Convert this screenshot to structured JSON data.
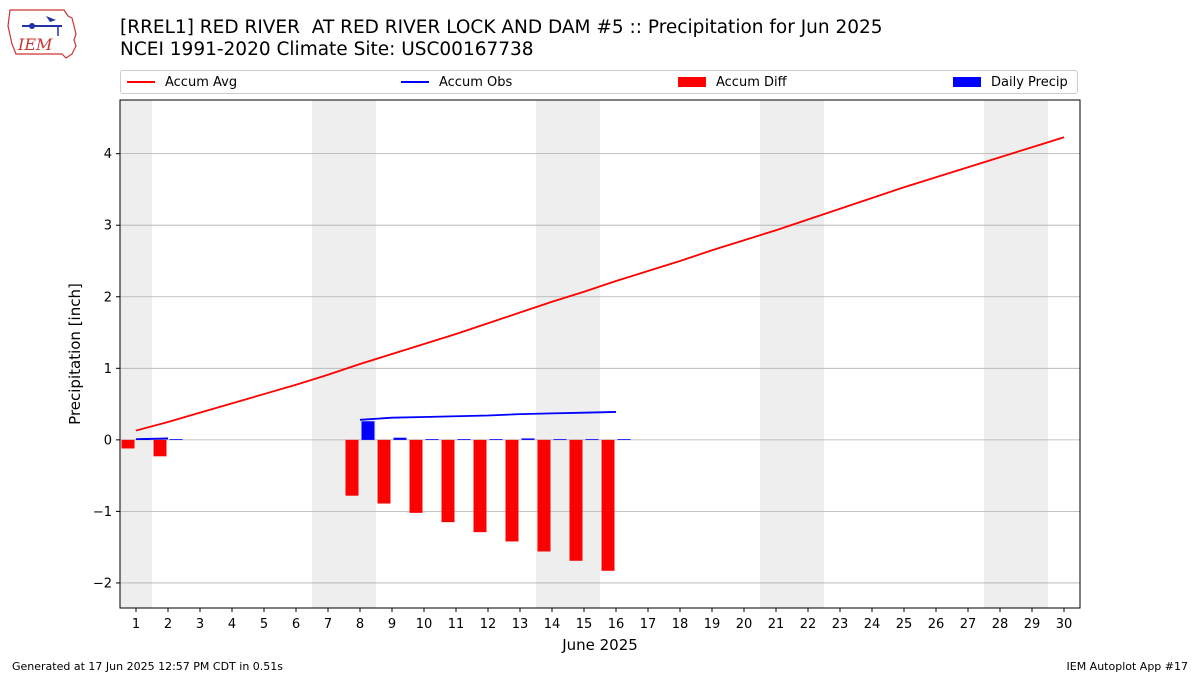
{
  "header": {
    "logo_text": "IEM",
    "title_line1": "[RREL1] RED RIVER  AT RED RIVER LOCK AND DAM #5 :: Precipitation for Jun 2025",
    "title_line2": "NCEI 1991-2020 Climate Site: USC00167738"
  },
  "legend": {
    "items": [
      {
        "label": "Accum Avg",
        "kind": "line",
        "color": "#ff0000"
      },
      {
        "label": "Accum Obs",
        "kind": "line",
        "color": "#0000ff"
      },
      {
        "label": "Accum Diff",
        "kind": "box",
        "color": "#ff0000"
      },
      {
        "label": "Daily Precip",
        "kind": "box",
        "color": "#0000ff"
      }
    ]
  },
  "footer": {
    "left": "Generated at 17 Jun 2025 12:57 PM CDT in 0.51s",
    "right": "IEM Autoplot App #17"
  },
  "chart_data": {
    "type": "bar",
    "title": "[RREL1] RED RIVER  AT RED RIVER LOCK AND DAM #5 :: Precipitation for Jun 2025",
    "subtitle": "NCEI 1991-2020 Climate Site: USC00167738",
    "xlabel": "June 2025",
    "ylabel": "Precipitation [inch]",
    "xlim": [
      0.5,
      30.5
    ],
    "ylim": [
      -2.35,
      4.75
    ],
    "x_ticks": [
      1,
      2,
      3,
      4,
      5,
      6,
      7,
      8,
      9,
      10,
      11,
      12,
      13,
      14,
      15,
      16,
      17,
      18,
      19,
      20,
      21,
      22,
      23,
      24,
      25,
      26,
      27,
      28,
      29,
      30
    ],
    "y_ticks": [
      -2,
      -1,
      0,
      1,
      2,
      3,
      4
    ],
    "grid": "horizontal",
    "legend_position": "top",
    "weekend_shading": [
      [
        0.5,
        1.5
      ],
      [
        6.5,
        8.5
      ],
      [
        13.5,
        15.5
      ],
      [
        20.5,
        22.5
      ],
      [
        27.5,
        29.5
      ]
    ],
    "shade_color": "#eeeeee",
    "series": [
      {
        "name": "Accum Avg",
        "kind": "line",
        "color": "#ff0000",
        "x": [
          1,
          2,
          3,
          4,
          5,
          6,
          7,
          8,
          9,
          10,
          11,
          12,
          13,
          14,
          15,
          16,
          17,
          18,
          19,
          20,
          21,
          22,
          23,
          24,
          25,
          26,
          27,
          28,
          29,
          30
        ],
        "values": [
          0.13,
          0.25,
          0.38,
          0.51,
          0.64,
          0.77,
          0.91,
          1.06,
          1.2,
          1.34,
          1.48,
          1.63,
          1.78,
          1.93,
          2.07,
          2.22,
          2.36,
          2.5,
          2.65,
          2.79,
          2.93,
          3.08,
          3.23,
          3.38,
          3.53,
          3.67,
          3.81,
          3.95,
          4.09,
          4.23
        ]
      },
      {
        "name": "Accum Obs",
        "kind": "line",
        "color": "#0000ff",
        "x": [
          1,
          2,
          3,
          4,
          5,
          6,
          7,
          8,
          9,
          10,
          11,
          12,
          13,
          14,
          15,
          16
        ],
        "values": [
          0.01,
          0.02,
          null,
          null,
          null,
          null,
          null,
          0.28,
          0.31,
          0.32,
          0.33,
          0.34,
          0.36,
          0.37,
          0.38,
          0.39
        ]
      },
      {
        "name": "Accum Diff",
        "kind": "bar",
        "color": "#ff0000",
        "x": [
          1,
          2,
          8,
          9,
          10,
          11,
          12,
          13,
          14,
          15,
          16
        ],
        "values": [
          -0.12,
          -0.23,
          -0.78,
          -0.89,
          -1.02,
          -1.15,
          -1.29,
          -1.42,
          -1.56,
          -1.69,
          -1.83
        ]
      },
      {
        "name": "Daily Precip",
        "kind": "bar",
        "color": "#0000ff",
        "x": [
          1,
          2,
          8,
          9,
          10,
          11,
          12,
          13,
          14,
          15,
          16
        ],
        "values": [
          0.01,
          0.01,
          0.26,
          0.03,
          0.01,
          0.01,
          0.01,
          0.02,
          0.01,
          0.01,
          0.01
        ]
      }
    ]
  }
}
